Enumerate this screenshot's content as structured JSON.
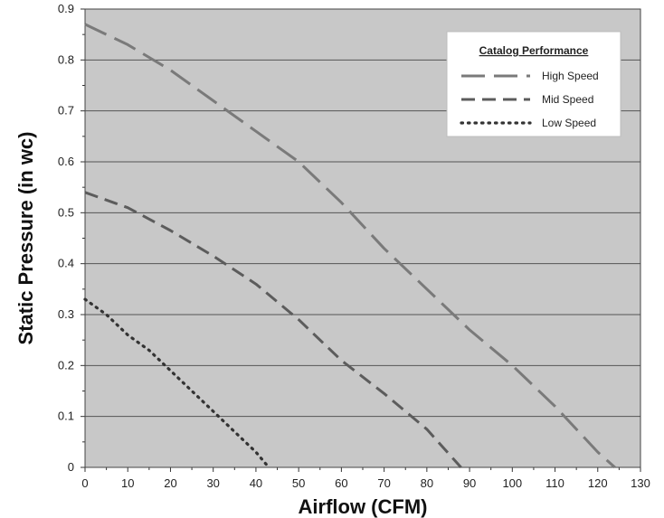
{
  "chart_data": {
    "type": "line",
    "title": "",
    "xlabel": "Airflow (CFM)",
    "ylabel": "Static Pressure (in wc)",
    "xlim": [
      0,
      130
    ],
    "ylim": [
      0,
      0.9
    ],
    "x_ticks": [
      "0",
      "10",
      "20",
      "30",
      "40",
      "50",
      "60",
      "70",
      "80",
      "90",
      "100",
      "110",
      "120",
      "130"
    ],
    "y_ticks": [
      "0",
      "0.1",
      "0.2",
      "0.3",
      "0.4",
      "0.5",
      "0.6",
      "0.7",
      "0.8",
      "0.9"
    ],
    "grid": "horizontal",
    "background_color": "#c8c8c8",
    "legend": {
      "title": "Catalog Performance",
      "placement": "top-right"
    },
    "series": [
      {
        "name": "High Speed",
        "style": "long-dash",
        "color": "#7a7a7a",
        "points": [
          [
            0,
            0.87
          ],
          [
            10,
            0.83
          ],
          [
            20,
            0.78
          ],
          [
            30,
            0.72
          ],
          [
            40,
            0.66
          ],
          [
            50,
            0.6
          ],
          [
            60,
            0.52
          ],
          [
            70,
            0.43
          ],
          [
            80,
            0.35
          ],
          [
            90,
            0.27
          ],
          [
            100,
            0.2
          ],
          [
            110,
            0.12
          ],
          [
            120,
            0.03
          ],
          [
            124,
            0
          ]
        ]
      },
      {
        "name": "Mid Speed",
        "style": "medium-dash",
        "color": "#5c5c5c",
        "points": [
          [
            0,
            0.54
          ],
          [
            10,
            0.51
          ],
          [
            20,
            0.465
          ],
          [
            30,
            0.415
          ],
          [
            40,
            0.36
          ],
          [
            50,
            0.29
          ],
          [
            60,
            0.21
          ],
          [
            70,
            0.145
          ],
          [
            80,
            0.075
          ],
          [
            88,
            0
          ]
        ]
      },
      {
        "name": "Low Speed",
        "style": "dotted",
        "color": "#333333",
        "points": [
          [
            0,
            0.33
          ],
          [
            5,
            0.3
          ],
          [
            10,
            0.26
          ],
          [
            15,
            0.23
          ],
          [
            20,
            0.19
          ],
          [
            25,
            0.15
          ],
          [
            30,
            0.11
          ],
          [
            35,
            0.07
          ],
          [
            40,
            0.03
          ],
          [
            43,
            0
          ]
        ]
      }
    ]
  }
}
